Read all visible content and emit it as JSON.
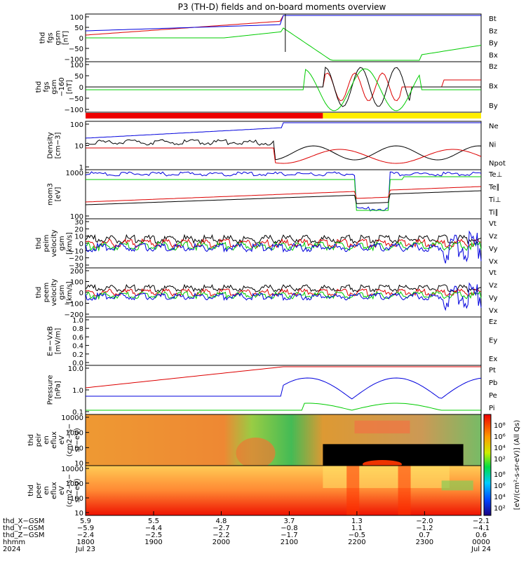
{
  "title": "P3 (TH-D) fields and on-board moments overview",
  "chart_data": [
    {
      "type": "line",
      "id": "fgs",
      "ylabel": [
        "thd",
        "fgs",
        "gsm",
        "[nT]"
      ],
      "yticks": [
        "100",
        "50",
        "0",
        "−50",
        "−100"
      ],
      "ylim": [
        -100,
        100
      ],
      "legend": [
        "Bt",
        "Bz",
        "By",
        "Bx"
      ],
      "legend_colors": [
        "#000000",
        "#dd0000",
        "#00cc00",
        "#0000dd"
      ]
    },
    {
      "type": "line",
      "id": "fgs_dc",
      "ylabel": [
        "thd",
        "fgs",
        "gsm",
        "−160",
        "[nT]"
      ],
      "yticks": [
        "100",
        "50",
        "0",
        "−50",
        "−100"
      ],
      "ylim": [
        -120,
        120
      ],
      "legend": [
        "Bz",
        "Bx",
        "By"
      ],
      "legend_colors": [
        "#dd0000",
        "#000000",
        "#00cc00"
      ]
    },
    {
      "type": "line",
      "id": "density",
      "ylabel": [
        "Density",
        "[cm−3]"
      ],
      "yticks": [
        "100",
        "10",
        "1"
      ],
      "log": true,
      "legend": [
        "Ne",
        "Ni",
        "Npot"
      ],
      "legend_colors": [
        "#dd0000",
        "#000000",
        "#0000dd"
      ]
    },
    {
      "type": "line",
      "id": "temperature",
      "ylabel": [
        "mom3",
        "[eV]"
      ],
      "yticks": [
        "1000",
        "100"
      ],
      "log": true,
      "legend": [
        "Te⊥",
        "Te∥",
        "Ti⊥",
        "Ti∥"
      ],
      "legend_colors": [
        "#dd0000",
        "#000000",
        "#dddd00",
        "#00cc00"
      ]
    },
    {
      "type": "line",
      "id": "peim_velocity",
      "ylabel": [
        "thd",
        "peim",
        "velocity",
        "gsm",
        "[km/s]"
      ],
      "yticks": [
        "30",
        "20",
        "10",
        "0",
        "−10",
        "−20",
        "−30"
      ],
      "ylim": [
        -30,
        30
      ],
      "legend": [
        "Vt",
        "Vz",
        "Vy",
        "Vx"
      ],
      "legend_colors": [
        "#000000",
        "#dd0000",
        "#00cc00",
        "#0000dd"
      ]
    },
    {
      "type": "line",
      "id": "peem_velocity",
      "ylabel": [
        "thd",
        "peem",
        "velocity",
        "gsm",
        "[km/s]"
      ],
      "yticks": [
        "200",
        "100",
        "0",
        "−100",
        "−200"
      ],
      "ylim": [
        -200,
        200
      ],
      "legend": [
        "Vt",
        "Vz",
        "Vy",
        "Vx"
      ],
      "legend_colors": [
        "#000000",
        "#dd0000",
        "#00cc00",
        "#0000dd"
      ]
    },
    {
      "type": "line",
      "id": "efield",
      "ylabel": [
        "E=−VxB",
        "[mV/m]"
      ],
      "yticks": [
        "1.0",
        "0.8",
        "0.6",
        "0.4",
        "0.2",
        "0.0"
      ],
      "ylim": [
        0,
        1
      ],
      "legend": [
        "Ez",
        "Ey",
        "Ex"
      ],
      "legend_colors": [
        "#dd0000",
        "#00cc00",
        "#0000dd"
      ]
    },
    {
      "type": "line",
      "id": "pressure",
      "ylabel": [
        "Pressure",
        "[nPa]"
      ],
      "yticks": [
        "10.0",
        "1.0",
        "0.1"
      ],
      "log": true,
      "legend": [
        "Pt",
        "Pb",
        "Pe",
        "Pi"
      ],
      "legend_colors": [
        "#000000",
        "#dd0000",
        "#00cc00",
        "#0000dd"
      ]
    },
    {
      "type": "heatmap",
      "id": "peir",
      "ylabel": [
        "thd",
        "peir",
        "en",
        "eflux",
        "eV",
        "(cm2−s−",
        "sr−eV)"
      ],
      "yticks": [
        "10000",
        "1000",
        "100",
        "10"
      ],
      "log": true
    },
    {
      "type": "heatmap",
      "id": "peer",
      "ylabel": [
        "thd",
        "peer",
        "en",
        "eflux",
        "eV",
        "(cm2−s−",
        "sr−eV)"
      ],
      "yticks": [
        "10000",
        "1000",
        "100",
        "10"
      ],
      "log": true
    }
  ],
  "colorbar": {
    "label": "[eV/(cm²-s-sr-eV)] (All Qs)",
    "ticks_top": [
      "10⁸",
      "10⁶",
      "10⁴",
      "10²"
    ],
    "ticks_bottom": [
      "10⁸",
      "10⁶",
      "10⁴",
      "10²"
    ]
  },
  "xaxis": {
    "labels": [
      "thd_X−GSM",
      "thd_Y−GSM",
      "thd_Z−GSM",
      "hhmm",
      "2024"
    ],
    "ticks": [
      {
        "x": "5.9",
        "y": "−5.9",
        "z": "−2.4",
        "hhmm": "1800",
        "date": "Jul 23"
      },
      {
        "x": "5.5",
        "y": "−4.4",
        "z": "−2.5",
        "hhmm": "1900",
        "date": ""
      },
      {
        "x": "4.8",
        "y": "−2.7",
        "z": "−2.2",
        "hhmm": "2000",
        "date": ""
      },
      {
        "x": "3.7",
        "y": "−0.8",
        "z": "−1.7",
        "hhmm": "2100",
        "date": ""
      },
      {
        "x": "1.3",
        "y": "1.1",
        "z": "−0.5",
        "hhmm": "2200",
        "date": ""
      },
      {
        "x": "−2.0",
        "y": "−1.2",
        "z": "0.7",
        "hhmm": "2300",
        "date": ""
      },
      {
        "x": "−2.1",
        "y": "−4.1",
        "z": "0.6",
        "hhmm": "0000",
        "date": "Jul 24"
      }
    ]
  }
}
